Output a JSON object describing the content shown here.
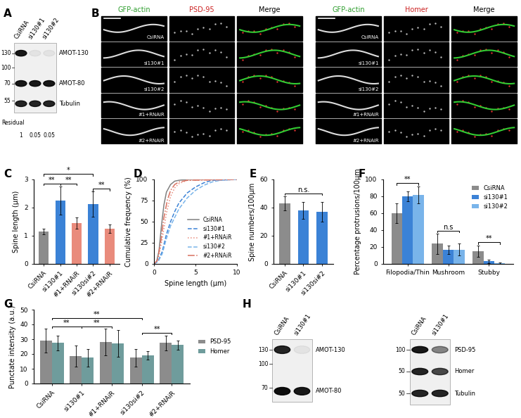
{
  "chart_data": [
    {
      "panel_label": "C",
      "type": "bar",
      "categories": [
        "CsiRNA",
        "si130#1",
        "#1+RNAiR",
        "si130si#2",
        "#2+RNAiR"
      ],
      "values": [
        1.15,
        2.25,
        1.45,
        2.12,
        1.25
      ],
      "errors": [
        0.1,
        0.5,
        0.2,
        0.45,
        0.15
      ],
      "colors": [
        "#8c8c8c",
        "#3b82d6",
        "#e98b7c",
        "#3b82d6",
        "#e98b7c"
      ],
      "y_label": "Spine length (μm)",
      "ylim": [
        0,
        3
      ],
      "yticks": [
        0,
        1,
        2,
        3
      ],
      "annotations": [
        {
          "text": "**",
          "between": [
            "CsiRNA",
            "si130#1"
          ]
        },
        {
          "text": "**",
          "between": [
            "si130#1",
            "#1+RNAiR"
          ]
        },
        {
          "text": "**",
          "between": [
            "si130si#2",
            "#2+RNAiR"
          ]
        },
        {
          "text": "*",
          "between": [
            "CsiRNA",
            "si130si#2"
          ]
        }
      ]
    },
    {
      "panel_label": "D",
      "type": "line",
      "x_label": "Spine length (μm)",
      "y_label": "Cumulative frequency (%)",
      "xlim": [
        0,
        10
      ],
      "xticks": [
        0,
        5,
        10
      ],
      "ylim": [
        0,
        100
      ],
      "yticks": [
        0,
        25,
        50,
        75,
        100
      ],
      "legend": "lower right",
      "series": [
        {
          "name": "CsiRNA",
          "color": "#808080",
          "line_style": "solid",
          "x": [
            0,
            0.3,
            0.6,
            0.9,
            1.2,
            1.5,
            2,
            2.5,
            3,
            4,
            10
          ],
          "values": [
            0,
            2,
            15,
            45,
            70,
            85,
            94,
            98,
            99,
            100,
            100
          ]
        },
        {
          "name": "si130#1",
          "color": "#3b82d6",
          "line_style": "dashed",
          "x": [
            0,
            0.5,
            1,
            1.5,
            2,
            2.5,
            3,
            4,
            5,
            6,
            7,
            10
          ],
          "values": [
            0,
            3,
            15,
            35,
            50,
            62,
            72,
            84,
            91,
            96,
            99,
            100
          ]
        },
        {
          "name": "#1+RNAiR",
          "color": "#e98b7c",
          "line_style": "dotted",
          "x": [
            0,
            0.5,
            1,
            1.5,
            2,
            2.5,
            3,
            4,
            10
          ],
          "values": [
            0,
            5,
            30,
            60,
            80,
            90,
            95,
            99,
            100
          ]
        },
        {
          "name": "si130#2",
          "color": "#79b4ea",
          "line_style": "dashed",
          "x": [
            0,
            0.5,
            1,
            1.5,
            2,
            3,
            4,
            5,
            6,
            7,
            8,
            10
          ],
          "values": [
            0,
            3,
            12,
            30,
            45,
            65,
            78,
            87,
            93,
            97,
            99,
            100
          ]
        },
        {
          "name": "#2+RNAiR",
          "color": "#d9705f",
          "line_style": "dashdot",
          "x": [
            0,
            0.4,
            0.8,
            1.2,
            1.6,
            2,
            2.5,
            3,
            4,
            10
          ],
          "values": [
            0,
            4,
            25,
            55,
            75,
            87,
            94,
            97,
            99,
            100
          ]
        }
      ]
    },
    {
      "panel_label": "E",
      "type": "bar",
      "categories": [
        "CsiRNA",
        "si130#1",
        "si130si#2"
      ],
      "values": [
        43,
        38,
        37
      ],
      "errors": [
        5,
        6,
        7
      ],
      "colors": [
        "#8c8c8c",
        "#3b82d6",
        "#3b82d6"
      ],
      "y_label": "Spine numbers/100μm",
      "ylim": [
        0,
        60
      ],
      "yticks": [
        0,
        20,
        40,
        60
      ],
      "annotations": [
        {
          "text": "n.s.",
          "between": [
            "CsiRNA",
            "si130si#2"
          ]
        }
      ]
    },
    {
      "panel_label": "F",
      "type": "bar",
      "categories": [
        "Filopodia/Thin",
        "Mushroom",
        "Stubby"
      ],
      "y_label": "Percentage protrusions/100μm",
      "ylim": [
        0,
        100
      ],
      "yticks": [
        0,
        20,
        40,
        60,
        80,
        100
      ],
      "legend": "upper right",
      "series": [
        {
          "name": "CsiRNA",
          "color": "#8c8c8c",
          "values": [
            60,
            24,
            15
          ],
          "errors": [
            12,
            12,
            7
          ]
        },
        {
          "name": "si130#1",
          "color": "#3b82d6",
          "values": [
            80,
            17,
            3
          ],
          "errors": [
            6,
            5,
            2
          ]
        },
        {
          "name": "si130#2",
          "color": "#79b4ea",
          "values": [
            82,
            17,
            1
          ],
          "errors": [
            10,
            7,
            1
          ]
        }
      ],
      "annotations": [
        {
          "text": "**",
          "between": [
            "Filopodia/Thin"
          ]
        },
        {
          "text": "n.s",
          "between": [
            "Mushroom"
          ]
        },
        {
          "text": "**",
          "between": [
            "Stubby"
          ]
        }
      ]
    },
    {
      "panel_label": "G",
      "type": "bar",
      "categories": [
        "CsiRNA",
        "si130#1",
        "#1+RNAiR",
        "si130si#2",
        "#2+RNAiR"
      ],
      "y_label": "Punctate intensity (a.u.)",
      "ylim": [
        0,
        50
      ],
      "yticks": [
        0,
        10,
        20,
        30,
        40,
        50
      ],
      "legend": "right",
      "series": [
        {
          "name": "PSD-95",
          "color": "#8c8c8c",
          "values": [
            29,
            18.5,
            28,
            17.5,
            27.5
          ],
          "errors": [
            8,
            7,
            9,
            6,
            5
          ]
        },
        {
          "name": "Homer",
          "color": "#6f9c9c",
          "values": [
            27.5,
            17.5,
            27,
            19,
            26
          ],
          "errors": [
            5,
            6,
            9,
            3,
            3
          ]
        }
      ],
      "annotations": [
        {
          "text": "**",
          "between": [
            "CsiRNA",
            "si130#1"
          ]
        },
        {
          "text": "**",
          "between": [
            "si130#1",
            "#1+RNAiR"
          ]
        },
        {
          "text": "**",
          "between": [
            "si130si#2",
            "#2+RNAiR"
          ]
        },
        {
          "text": "**",
          "between": [
            "CsiRNA",
            "si130si#2"
          ]
        }
      ]
    }
  ],
  "blots": [
    {
      "panel_label": "A",
      "lanes": [
        "CsiRNA",
        "si130#1",
        "si130#2"
      ],
      "markers": [
        130,
        100,
        70,
        55
      ],
      "bands": [
        "AMOT-130",
        "AMOT-80",
        "Tubulin"
      ],
      "residual_label": "Residual",
      "residual": [
        1,
        0.05,
        0.05
      ]
    },
    {
      "panel_label": "H",
      "lanes": [
        "CsiRNA",
        "si130#1"
      ],
      "markers": [
        130,
        100,
        70
      ],
      "bands": [
        "AMOT-130",
        "AMOT-80"
      ]
    },
    {
      "lanes": [
        "CsiRNA",
        "si130#1"
      ],
      "markers": [
        100,
        50,
        50
      ],
      "bands": [
        "PSD-95",
        "Homer",
        "Tubulin"
      ]
    }
  ],
  "images": {
    "panel_label": "B",
    "groups": [
      {
        "columns": [
          "GFP-actin",
          "PSD-95",
          "Merge"
        ]
      },
      {
        "columns": [
          "GFP-actin",
          "Homer",
          "Merge"
        ]
      }
    ],
    "rows": [
      "CsiRNA",
      "si130#1",
      "si130#2",
      "#1+RNAiR",
      "#2+RNAiR"
    ]
  }
}
